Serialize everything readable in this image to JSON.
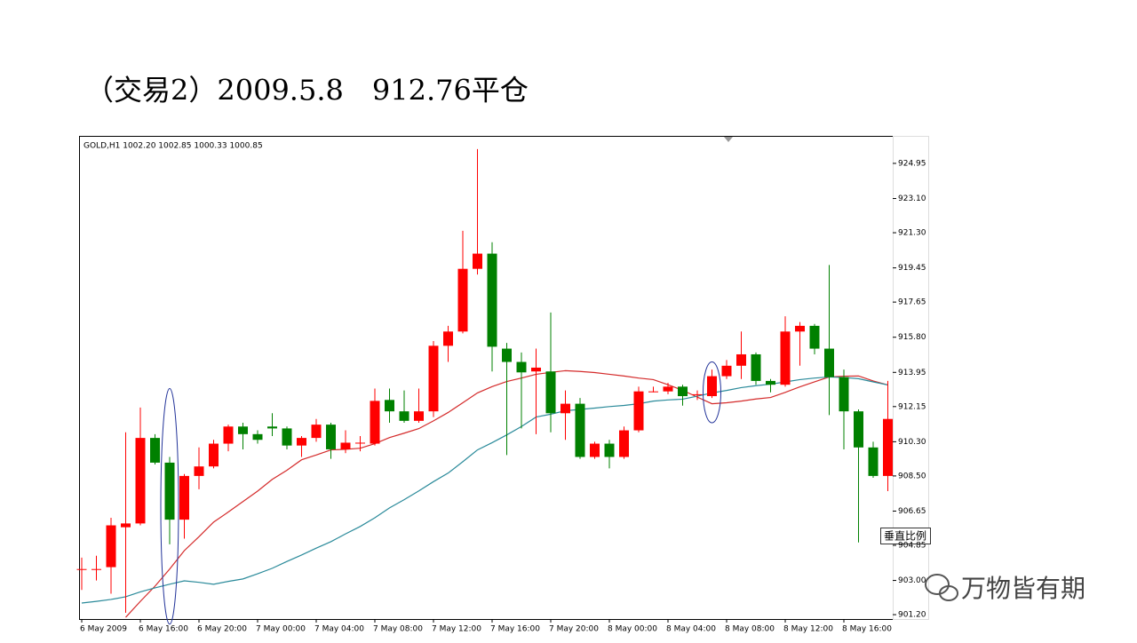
{
  "slide_title": "（交易2）2009.5.8　912.76平仓",
  "watermark": "万物皆有期",
  "scale_button": "垂直比例",
  "chart_data": {
    "type": "candlestick",
    "header": "GOLD,H1  1002.20 1002.85 1000.33 1000.85",
    "categories": [
      "6 May 2009",
      null,
      null,
      null,
      "6 May 16:00",
      null,
      null,
      null,
      "6 May 20:00",
      null,
      null,
      null,
      "7 May 00:00",
      null,
      null,
      null,
      "7 May 04:00",
      null,
      null,
      null,
      "7 May 08:00",
      null,
      null,
      null,
      "7 May 12:00",
      null,
      null,
      null,
      "7 May 16:00",
      null,
      null,
      null,
      "7 May 20:00",
      null,
      null,
      null,
      "8 May 00:00",
      null,
      null,
      null,
      "8 May 04:00",
      null,
      null,
      null,
      "8 May 08:00",
      null,
      null,
      null,
      "8 May 12:00",
      null,
      null,
      null,
      "8 May 16:00",
      null,
      null,
      null
    ],
    "open": [
      903.6,
      903.6,
      903.7,
      905.8,
      906.0,
      910.5,
      909.2,
      906.2,
      908.5,
      909.0,
      910.2,
      911.1,
      910.7,
      911.1,
      911.0,
      910.1,
      910.5,
      911.2,
      909.9,
      910.25,
      910.2,
      912.5,
      911.9,
      911.4,
      911.9,
      915.35,
      916.1,
      919.4,
      920.2,
      915.2,
      914.5,
      914.0,
      914.0,
      911.8,
      912.3,
      909.5,
      910.2,
      909.5,
      910.9,
      912.95,
      912.95,
      913.2,
      912.8,
      912.7,
      913.75,
      914.3,
      914.9,
      913.5,
      913.3,
      916.1,
      916.4,
      915.2,
      913.7,
      911.9,
      910.0,
      908.5
    ],
    "high": [
      904.2,
      904.3,
      906.3,
      910.8,
      912.1,
      910.7,
      909.5,
      908.6,
      910.0,
      910.4,
      911.2,
      911.3,
      910.9,
      911.8,
      911.1,
      910.6,
      911.5,
      911.3,
      910.9,
      910.6,
      913.1,
      913.1,
      913.0,
      913.1,
      915.6,
      916.4,
      921.4,
      925.7,
      920.8,
      915.5,
      915.0,
      915.2,
      917.1,
      913.0,
      912.6,
      910.3,
      910.4,
      911.1,
      913.2,
      913.2,
      913.4,
      913.3,
      913.0,
      914.1,
      914.6,
      916.1,
      915.0,
      913.6,
      916.9,
      916.6,
      916.5,
      919.6,
      914.1,
      912.0,
      910.3,
      913.5
    ],
    "low": [
      902.5,
      903.0,
      902.3,
      901.3,
      905.9,
      909.1,
      904.9,
      905.2,
      907.8,
      908.9,
      909.8,
      909.9,
      910.2,
      910.6,
      909.9,
      909.5,
      910.3,
      909.4,
      909.7,
      909.8,
      910.1,
      911.3,
      911.3,
      911.3,
      911.6,
      914.5,
      916.0,
      919.1,
      914.0,
      909.6,
      911.0,
      910.7,
      910.8,
      910.4,
      909.4,
      909.4,
      908.9,
      909.4,
      910.8,
      912.9,
      912.8,
      912.2,
      912.5,
      912.6,
      913.6,
      913.6,
      913.3,
      912.9,
      913.2,
      914.3,
      914.9,
      911.7,
      909.9,
      905.0,
      908.4,
      907.7
    ],
    "close": [
      903.6,
      903.6,
      905.9,
      906.0,
      910.5,
      909.2,
      906.2,
      908.5,
      909.0,
      910.2,
      911.1,
      910.7,
      910.4,
      911.0,
      910.1,
      910.5,
      911.2,
      909.9,
      910.25,
      910.25,
      912.45,
      911.9,
      911.4,
      911.9,
      915.35,
      916.1,
      919.4,
      920.2,
      915.3,
      914.5,
      913.95,
      914.2,
      911.8,
      912.3,
      909.5,
      910.2,
      909.5,
      910.9,
      912.95,
      912.95,
      913.2,
      912.7,
      912.8,
      913.75,
      914.3,
      914.9,
      913.5,
      913.3,
      916.1,
      916.4,
      915.2,
      913.7,
      911.9,
      910.0,
      908.5,
      911.5
    ],
    "up_color": "#ff0000",
    "down_color": "#008000",
    "lines": [
      {
        "color": "#d42a2a",
        "values": [
          null,
          null,
          null,
          901.06,
          901.9,
          902.7,
          903.6,
          904.57,
          905.3,
          906.07,
          906.6,
          907.15,
          907.7,
          908.32,
          908.8,
          909.35,
          909.6,
          909.87,
          909.9,
          909.96,
          910.2,
          910.52,
          910.75,
          910.99,
          911.4,
          911.84,
          912.35,
          912.87,
          913.2,
          913.47,
          913.65,
          913.85,
          913.95,
          914.04,
          914.0,
          913.94,
          913.85,
          913.76,
          913.65,
          913.57,
          913.3,
          913.01,
          912.65,
          912.3,
          912.35,
          912.44,
          912.55,
          912.63,
          912.9,
          913.19,
          913.45,
          913.71,
          913.75,
          913.76,
          913.5,
          913.29
        ]
      },
      {
        "color": "#2a8a9a",
        "values": [
          901.81,
          901.9,
          902.0,
          902.14,
          902.4,
          902.61,
          902.8,
          902.98,
          902.9,
          902.8,
          902.95,
          903.08,
          903.35,
          903.64,
          904.0,
          904.34,
          904.7,
          905.04,
          905.45,
          905.84,
          906.3,
          906.82,
          907.25,
          907.71,
          908.2,
          908.65,
          909.25,
          909.87,
          910.25,
          910.66,
          911.1,
          911.6,
          911.75,
          911.93,
          912.0,
          912.07,
          912.15,
          912.21,
          912.3,
          912.44,
          912.5,
          912.54,
          912.7,
          912.87,
          913.0,
          913.15,
          913.25,
          913.33,
          913.45,
          913.57,
          913.65,
          913.71,
          913.68,
          913.62,
          913.45,
          913.29
        ]
      }
    ],
    "ylim": [
      900.97,
      926.35
    ],
    "yticks": [
      {
        "value": 901.2,
        "label": "901.20"
      },
      {
        "value": 903.0,
        "label": "903.00"
      },
      904.85,
      906.65,
      {
        "value": 908.5,
        "label": "908.50"
      },
      {
        "value": 910.3,
        "label": "910.30"
      },
      912.15,
      913.95,
      {
        "value": 915.8,
        "label": "915.80"
      },
      917.65,
      919.45,
      {
        "value": 921.3,
        "label": "921.30"
      },
      {
        "value": 923.1,
        "label": "923.10"
      },
      924.95
    ]
  }
}
